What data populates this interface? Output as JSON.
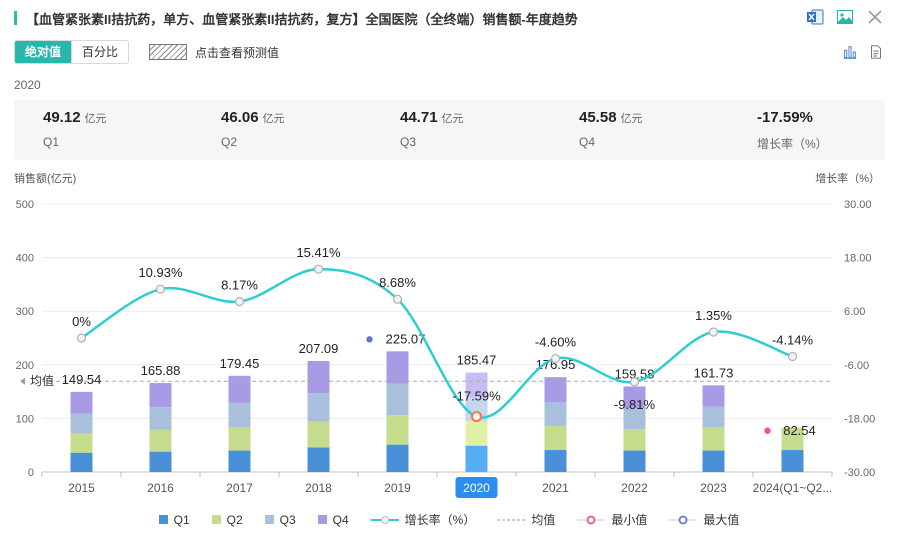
{
  "header": {
    "title": "【血管紧张素II拮抗药，单方、血管紧张素II拮抗药，复方】全国医院（全终端）销售额-年度趋势"
  },
  "toolbar": {
    "abs_label": "绝对值",
    "pct_label": "百分比",
    "forecast_label": "点击查看预测值"
  },
  "summary": {
    "year": "2020",
    "unit": "亿元",
    "items": [
      {
        "value": "49.12",
        "label": "Q1"
      },
      {
        "value": "46.06",
        "label": "Q2"
      },
      {
        "value": "44.71",
        "label": "Q3"
      },
      {
        "value": "45.58",
        "label": "Q4"
      }
    ],
    "growth": {
      "value": "-17.59%",
      "label": "增长率（%）"
    }
  },
  "colors": {
    "q1": "#4a90d9",
    "q2": "#c5dc8c",
    "q3": "#a8c0dc",
    "q4": "#a99ae6",
    "q1_sel": "#55aef5",
    "q2_sel": "#e0f0a6",
    "q3_sel": "#c3d8f0",
    "q4_sel": "#c8bcf5",
    "growth_line": "#2ecdd0",
    "min_marker": "#f5508a",
    "max_marker": "#6b72d8",
    "selected_tick_bg": "#2d8cf0"
  },
  "chart_data": {
    "type": "bar",
    "stacked": true,
    "categories": [
      "2015",
      "2016",
      "2017",
      "2018",
      "2019",
      "2020",
      "2021",
      "2022",
      "2023",
      "2024(Q1~Q2..."
    ],
    "selected_category": "2020",
    "ylabel": "销售额(亿元)",
    "ylabel_right": "增长率（%）",
    "ylim": [
      0,
      500
    ],
    "yticks": [
      "0",
      "100",
      "200",
      "300",
      "400",
      "500"
    ],
    "ylim_right": [
      -30,
      30
    ],
    "yticks_right": [
      "-30.00",
      "-18.00",
      "-6.00",
      "6.00",
      "18.00",
      "30.00"
    ],
    "series": [
      {
        "name": "Q1",
        "values": [
          36,
          38,
          40,
          46,
          51,
          49.12,
          41,
          40,
          40,
          41
        ]
      },
      {
        "name": "Q2",
        "values": [
          36,
          41,
          44,
          48,
          55,
          46.06,
          45,
          40,
          44,
          41.54
        ]
      },
      {
        "name": "Q3",
        "values": [
          37,
          42,
          45,
          53,
          59,
          44.71,
          44,
          39,
          38,
          0
        ]
      },
      {
        "name": "Q4",
        "values": [
          40.54,
          44.88,
          50.45,
          60.09,
          60.07,
          45.58,
          46.95,
          40.58,
          39.73,
          0
        ]
      }
    ],
    "totals": [
      149.54,
      165.88,
      179.45,
      207.09,
      225.07,
      185.47,
      176.95,
      159.58,
      161.73,
      82.54
    ],
    "total_labels": [
      "149.54",
      "165.88",
      "179.45",
      "207.09",
      "225.07",
      "185.47",
      "176.95",
      "159.58",
      "161.73",
      "82.54"
    ],
    "growth_series": {
      "name": "增长率（%）",
      "values": [
        0,
        10.93,
        8.17,
        15.41,
        8.68,
        -17.59,
        -4.6,
        -9.81,
        1.35,
        -4.14
      ],
      "labels": [
        "0%",
        "10.93%",
        "8.17%",
        "15.41%",
        "8.68%",
        "-17.59%",
        "-4.60%",
        "-9.81%",
        "1.35%",
        "-4.14%"
      ]
    },
    "average": {
      "name": "均值",
      "label": "均值",
      "value": 169.4
    },
    "min": {
      "name": "最小值",
      "index": 9
    },
    "max": {
      "name": "最大值",
      "index": 4
    },
    "legend": [
      "Q1",
      "Q2",
      "Q3",
      "Q4",
      "增长率（%）",
      "均值",
      "最小值",
      "最大值"
    ],
    "legend_position": "bottom"
  }
}
